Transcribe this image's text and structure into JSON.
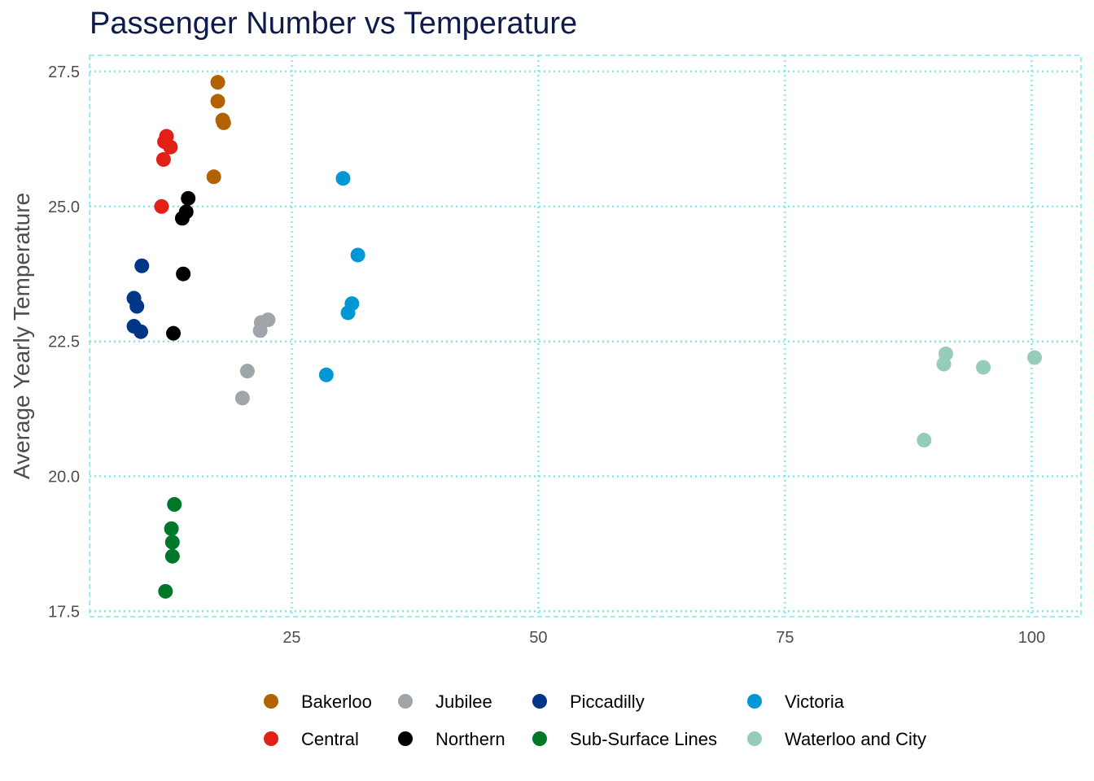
{
  "chart_data": {
    "type": "scatter",
    "title": "Passenger Number vs Temperature",
    "xlabel": "",
    "ylabel": "Average Yearly Temperature",
    "xlim": [
      4.5,
      105
    ],
    "ylim": [
      17.4,
      27.8
    ],
    "x_ticks": [
      25,
      50,
      75,
      100
    ],
    "x_tick_labels": [
      "25",
      "50",
      "75",
      "100"
    ],
    "y_ticks": [
      17.5,
      20.0,
      22.5,
      25.0,
      27.5
    ],
    "y_tick_labels": [
      "17.5",
      "20.0",
      "22.5",
      "25.0",
      "27.5"
    ],
    "grid": true,
    "grid_color": "#7fe8f0",
    "legend_position": "bottom",
    "series": [
      {
        "name": "Bakerloo",
        "color": "#b26200",
        "points": [
          [
            17.5,
            27.3
          ],
          [
            17.5,
            26.95
          ],
          [
            18.0,
            26.6
          ],
          [
            18.1,
            26.55
          ],
          [
            17.1,
            25.55
          ]
        ]
      },
      {
        "name": "Central",
        "color": "#e32017",
        "points": [
          [
            12.3,
            26.3
          ],
          [
            12.1,
            26.2
          ],
          [
            12.7,
            26.1
          ],
          [
            12.0,
            25.87
          ],
          [
            11.8,
            25.0
          ]
        ]
      },
      {
        "name": "Jubilee",
        "color": "#a0a5a9",
        "points": [
          [
            22.6,
            22.9
          ],
          [
            21.9,
            22.85
          ],
          [
            21.8,
            22.7
          ],
          [
            20.5,
            21.95
          ],
          [
            20.0,
            21.45
          ]
        ]
      },
      {
        "name": "Northern",
        "color": "#000000",
        "points": [
          [
            14.5,
            25.15
          ],
          [
            14.3,
            24.9
          ],
          [
            13.9,
            24.78
          ],
          [
            14.0,
            23.75
          ],
          [
            13.0,
            22.65
          ]
        ]
      },
      {
        "name": "Piccadilly",
        "color": "#003688",
        "points": [
          [
            9.8,
            23.9
          ],
          [
            9.0,
            23.3
          ],
          [
            9.3,
            23.15
          ],
          [
            9.0,
            22.78
          ],
          [
            9.7,
            22.68
          ]
        ]
      },
      {
        "name": "Sub-Surface Lines",
        "color": "#00782a",
        "points": [
          [
            13.1,
            19.48
          ],
          [
            12.8,
            19.03
          ],
          [
            12.9,
            18.78
          ],
          [
            12.9,
            18.52
          ],
          [
            12.2,
            17.87
          ]
        ]
      },
      {
        "name": "Victoria",
        "color": "#0098d4",
        "points": [
          [
            30.2,
            25.52
          ],
          [
            31.7,
            24.1
          ],
          [
            31.1,
            23.2
          ],
          [
            30.7,
            23.03
          ],
          [
            28.5,
            21.88
          ]
        ]
      },
      {
        "name": "Waterloo and City",
        "color": "#95cdba",
        "points": [
          [
            91.3,
            22.27
          ],
          [
            91.1,
            22.08
          ],
          [
            100.3,
            22.2
          ],
          [
            95.1,
            22.02
          ],
          [
            89.1,
            20.67
          ]
        ]
      }
    ]
  }
}
